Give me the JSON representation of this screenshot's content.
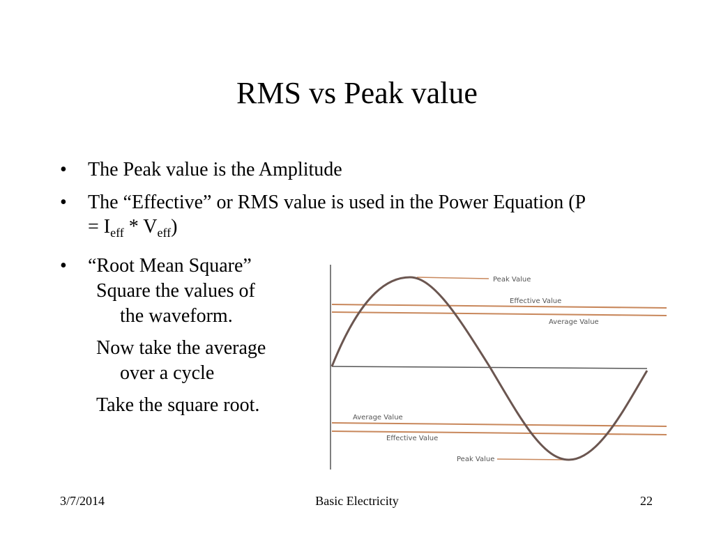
{
  "slide": {
    "title": "RMS vs Peak value",
    "bullets": [
      {
        "text": "The Peak value is the Amplitude"
      },
      {
        "text_before": "The “Effective” or RMS value is used in the Power Equation (P = I",
        "sub1": "eff",
        "mid": " * V",
        "sub2": "eff",
        "text_after": ")"
      },
      {
        "text": "“Root Mean Square”"
      }
    ],
    "steps": [
      {
        "line1": "Square the values of",
        "line2": "the waveform."
      },
      {
        "line1": "Now take the average",
        "line2": "over a cycle"
      },
      {
        "line1": "Take the square root.",
        "line2": ""
      }
    ],
    "figure_labels": {
      "peak_top": "Peak Value",
      "effective_top": "Effective Value",
      "average_top": "Average Value",
      "average_bottom": "Average Value",
      "effective_bottom": "Effective Value",
      "peak_bottom": "Peak Value"
    },
    "colors": {
      "waveform": "#6b5650",
      "level_lines": "#c8875b",
      "axis": "#555555",
      "label_text": "#555555"
    }
  },
  "footer": {
    "date": "3/7/2014",
    "course": "Basic Electricity",
    "page": "22"
  }
}
